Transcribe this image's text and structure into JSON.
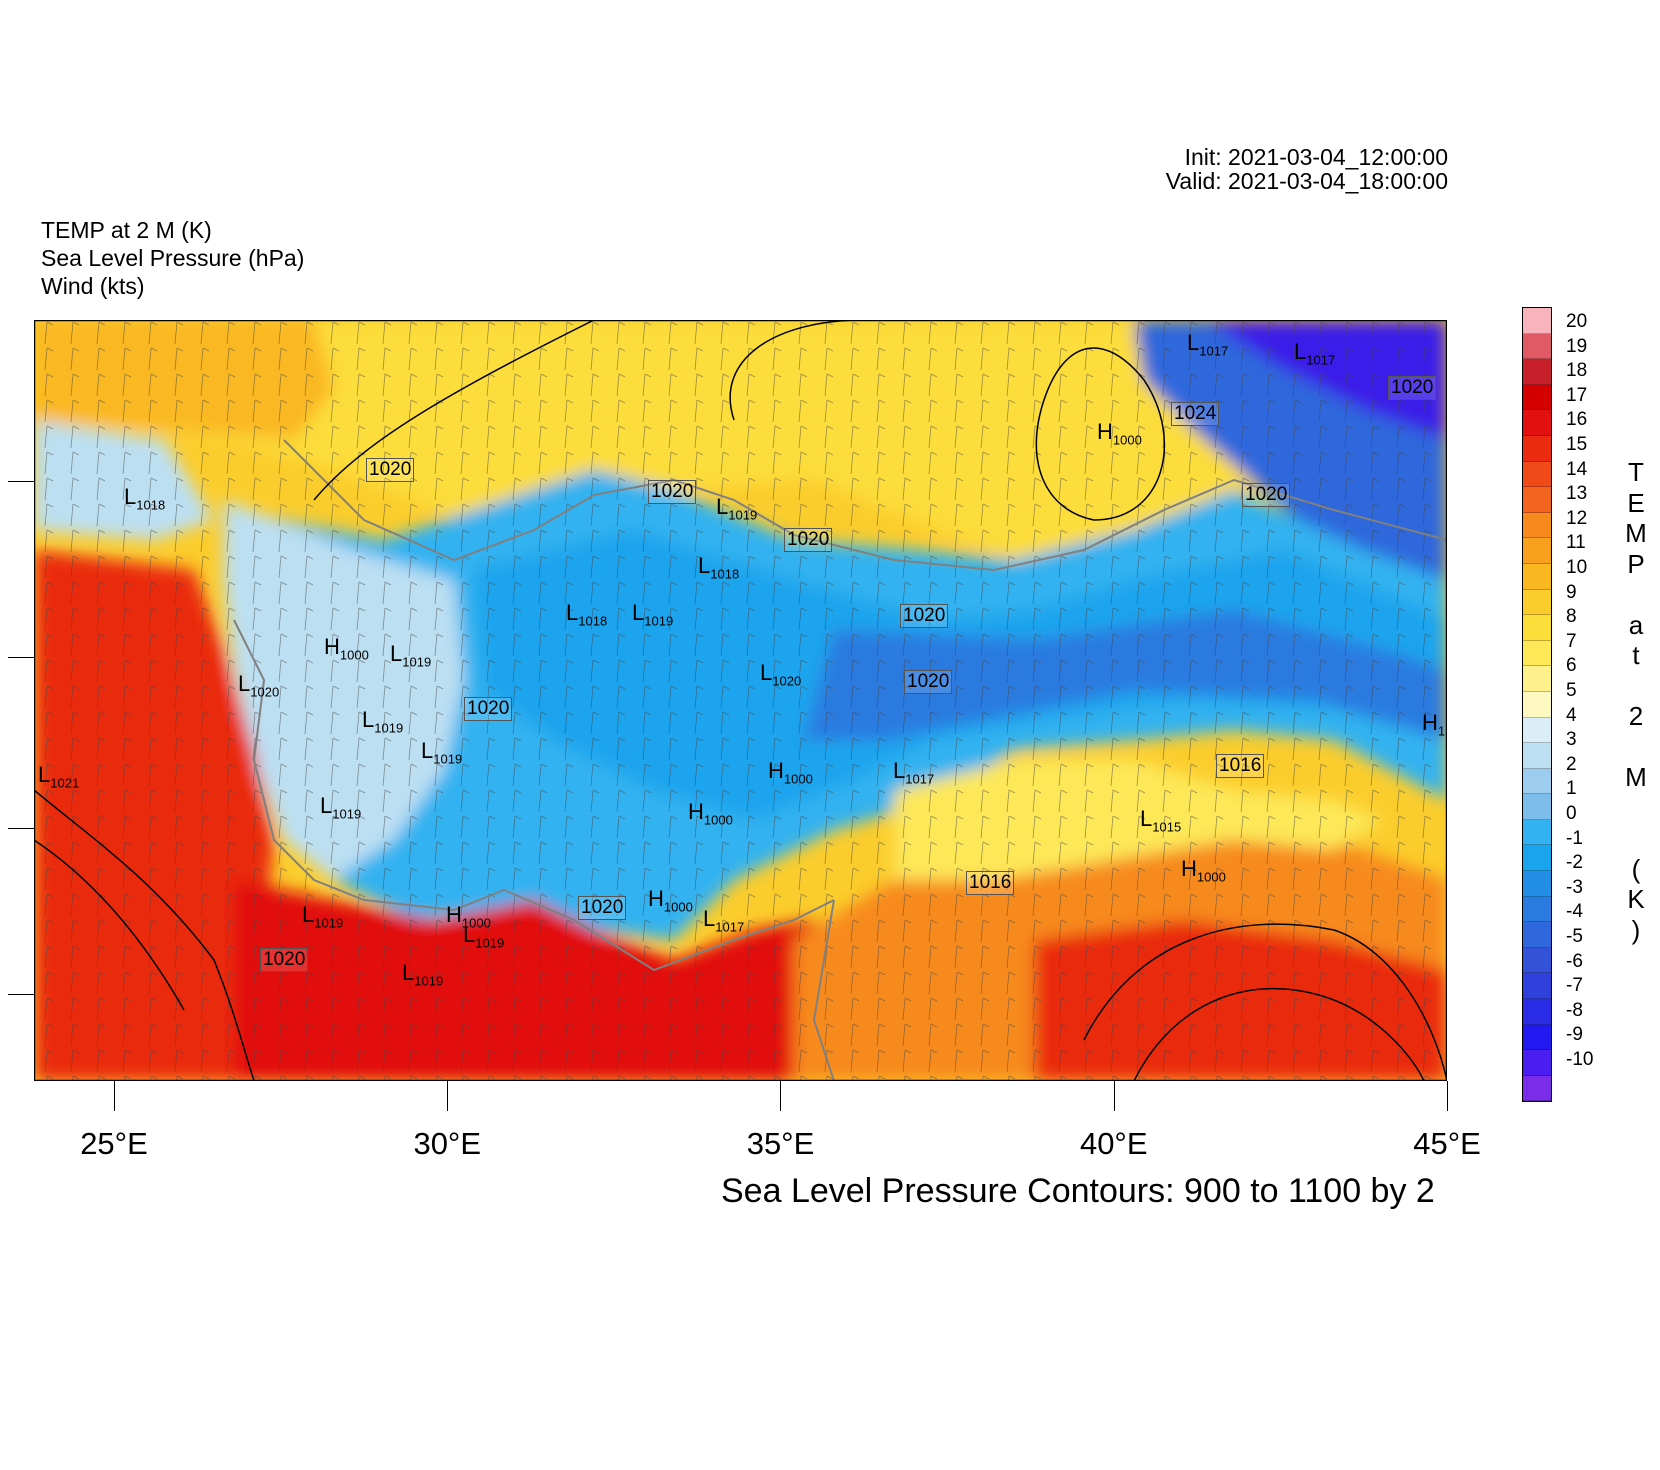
{
  "header": {
    "field1": "TEMP at 2 M   (K)",
    "field2": "Sea Level Pressure   (hPa)",
    "field3": "Wind   (kts)",
    "init": "Init: 2021-03-04_12:00:00",
    "valid": "Valid: 2021-03-04_18:00:00"
  },
  "footer": {
    "contour_note": "Sea Level Pressure Contours: 900 to 1100 by 2"
  },
  "axis": {
    "lon_labels": [
      "25°E",
      "30°E",
      "35°E",
      "40°E",
      "45°E"
    ],
    "lon_values": [
      25,
      30,
      35,
      40,
      45
    ]
  },
  "colorbar": {
    "title_chars": [
      "T",
      "E",
      "M",
      "P",
      "",
      "a",
      "t",
      "",
      "2",
      "",
      "M",
      "",
      "",
      "(",
      "K",
      ")"
    ],
    "labels": [
      "20",
      "19",
      "18",
      "17",
      "16",
      "15",
      "14",
      "13",
      "12",
      "11",
      "10",
      "9",
      "8",
      "7",
      "6",
      "5",
      "4",
      "3",
      "2",
      "1",
      "0",
      "-1",
      "-2",
      "-3",
      "-4",
      "-5",
      "-6",
      "-7",
      "-8",
      "-9",
      "-10"
    ],
    "colors": [
      "#f8b4bc",
      "#e05a66",
      "#c8202a",
      "#d40000",
      "#e21010",
      "#ea2b10",
      "#f04a18",
      "#f26420",
      "#f78a1c",
      "#f9a11e",
      "#fab820",
      "#fbcd2c",
      "#fcdd3a",
      "#fde858",
      "#fef08a",
      "#fdf8c0",
      "#dbeef8",
      "#bcdff2",
      "#9ccdee",
      "#7cbdea",
      "#32b2f0",
      "#1aa4ee",
      "#228ee6",
      "#2a7ae0",
      "#2f68dc",
      "#3452d8",
      "#3040dc",
      "#2a2ce6",
      "#2218f0",
      "#4a1ef0",
      "#7a2ce8"
    ]
  },
  "map_labels": {
    "highs_lows": [
      {
        "letter": "L",
        "value": "1018"
      },
      {
        "letter": "L",
        "value": "1021"
      },
      {
        "letter": "L",
        "value": "1020"
      },
      {
        "letter": "H",
        "value": "1000"
      },
      {
        "letter": "L",
        "value": "1019"
      },
      {
        "letter": "L",
        "value": "1019"
      },
      {
        "letter": "L",
        "value": "1019"
      },
      {
        "letter": "L",
        "value": "1019"
      },
      {
        "letter": "L",
        "value": "1019"
      },
      {
        "letter": "H",
        "value": "1000"
      },
      {
        "letter": "L",
        "value": "1019"
      },
      {
        "letter": "L",
        "value": "1019"
      },
      {
        "letter": "L",
        "value": "1018"
      },
      {
        "letter": "L",
        "value": "1019"
      },
      {
        "letter": "L",
        "value": "1019"
      },
      {
        "letter": "L",
        "value": "1018"
      },
      {
        "letter": "L",
        "value": "1020"
      },
      {
        "letter": "H",
        "value": "1000"
      },
      {
        "letter": "H",
        "value": "1000"
      },
      {
        "letter": "H",
        "value": "1000"
      },
      {
        "letter": "L",
        "value": "1017"
      },
      {
        "letter": "L",
        "value": "1017"
      },
      {
        "letter": "L",
        "value": "1015"
      },
      {
        "letter": "H",
        "value": "1000"
      },
      {
        "letter": "H",
        "value": "1000"
      },
      {
        "letter": "L",
        "value": "1017"
      },
      {
        "letter": "L",
        "value": "1017"
      },
      {
        "letter": "H",
        "value": "1"
      }
    ],
    "contour_labels": [
      "1020",
      "1020",
      "1020",
      "1020",
      "1020",
      "1020",
      "1020",
      "1020",
      "1020",
      "1024",
      "1020",
      "1016",
      "1016"
    ]
  }
}
